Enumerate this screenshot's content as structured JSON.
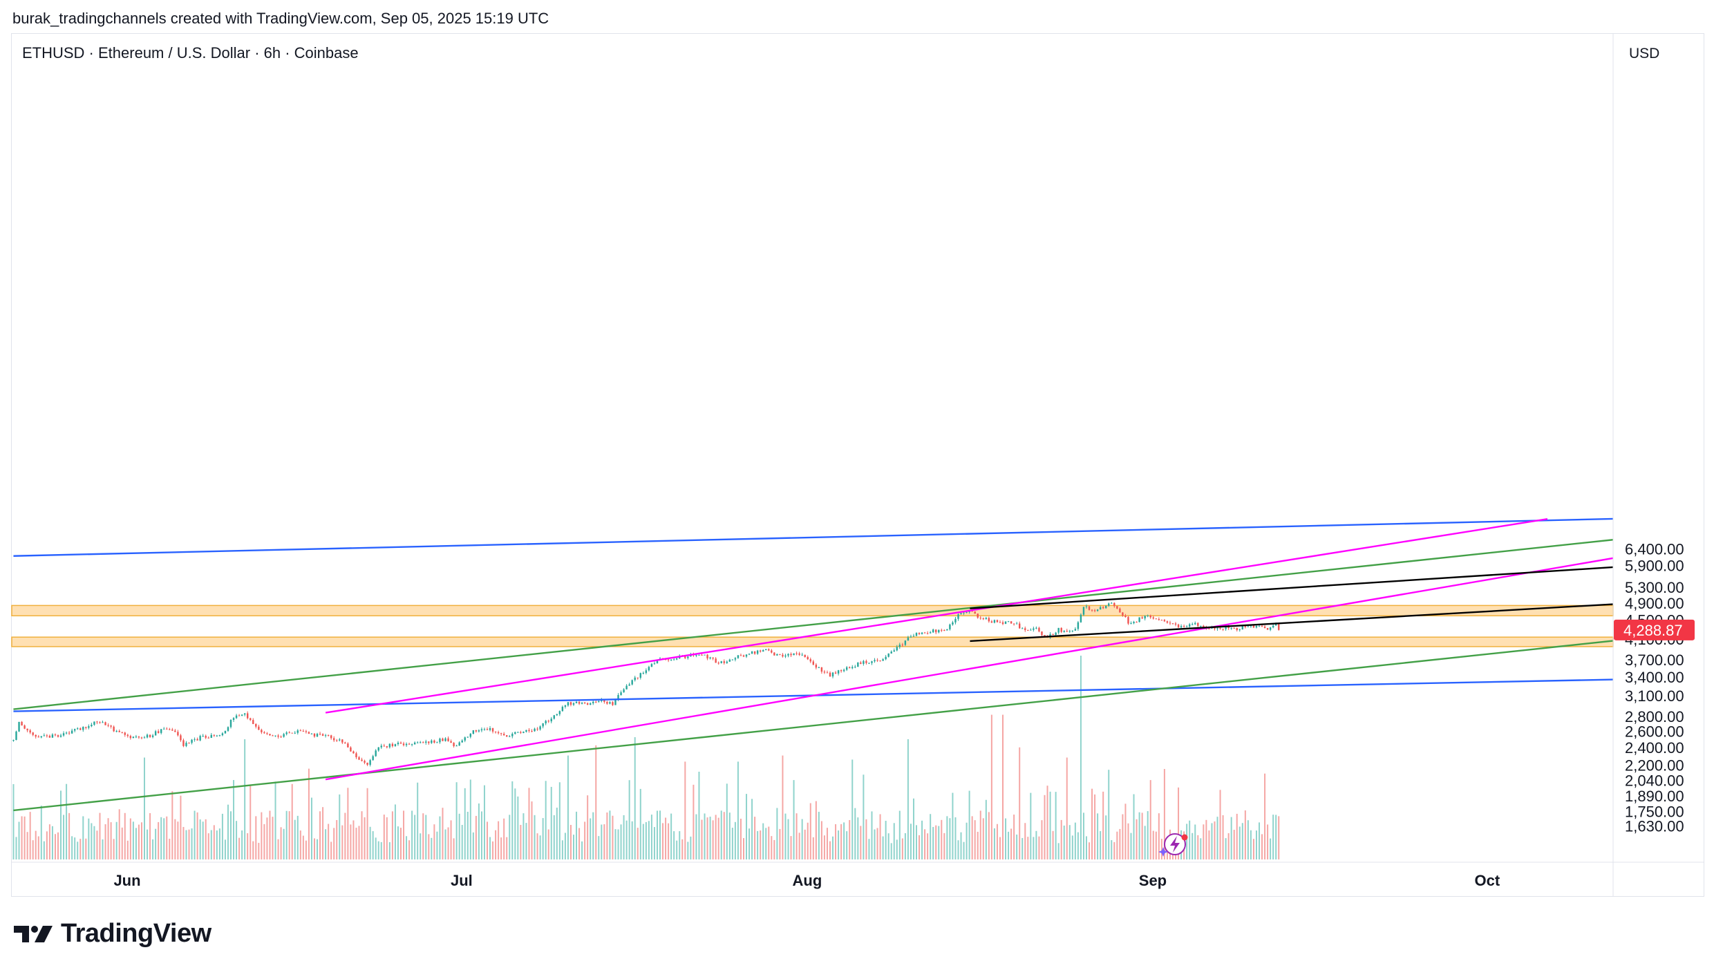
{
  "header": {
    "attribution": "burak_tradingchannels created with TradingView.com, Sep 05, 2025 15:19 UTC"
  },
  "symbol": {
    "title": "ETHUSD · Ethereum / U.S. Dollar · 6h · Coinbase",
    "currency": "USD",
    "last_price": "4,288.87"
  },
  "footer": {
    "logo_text": "TradingView"
  },
  "colors": {
    "up": "#26a69a",
    "down": "#ef5350",
    "blue_line": "#2962ff",
    "magenta_line": "#ff00ff",
    "green_line": "#43a047",
    "black_line": "#000000",
    "zone_fill": "#ffe0b2",
    "zone_border": "#f0b03c",
    "badge": "#f23645"
  },
  "chart_data": {
    "type": "candlestick",
    "title": "ETHUSD · Ethereum / U.S. Dollar · 6h · Coinbase",
    "y_scale": "log",
    "y_ticks": [
      {
        "value": 6400,
        "label": "6,400.00"
      },
      {
        "value": 5900,
        "label": "5,900.00"
      },
      {
        "value": 5300,
        "label": "5,300.00"
      },
      {
        "value": 4900,
        "label": "4,900.00"
      },
      {
        "value": 4500,
        "label": "4,500.00"
      },
      {
        "value": 4100,
        "label": "4,100.00"
      },
      {
        "value": 3700,
        "label": "3,700.00"
      },
      {
        "value": 3400,
        "label": "3,400.00"
      },
      {
        "value": 3100,
        "label": "3,100.00"
      },
      {
        "value": 2800,
        "label": "2,800.00"
      },
      {
        "value": 2600,
        "label": "2,600.00"
      },
      {
        "value": 2400,
        "label": "2,400.00"
      },
      {
        "value": 2200,
        "label": "2,200.00"
      },
      {
        "value": 2040,
        "label": "2,040.00"
      },
      {
        "value": 1890,
        "label": "1,890.00"
      },
      {
        "value": 1750,
        "label": "1,750.00"
      },
      {
        "value": 1630,
        "label": "1,630.00"
      }
    ],
    "x_ticks": [
      {
        "day": 0,
        "label": "Jun"
      },
      {
        "day": 30,
        "label": "Jul"
      },
      {
        "day": 61,
        "label": "Aug"
      },
      {
        "day": 92,
        "label": "Sep"
      },
      {
        "day": 122,
        "label": "Oct"
      }
    ],
    "price_anchors": [
      {
        "day": -10.2,
        "price": 2490
      },
      {
        "day": -9.7,
        "price": 2700
      },
      {
        "day": -8,
        "price": 2520
      },
      {
        "day": -5.5,
        "price": 2560
      },
      {
        "day": -3.5,
        "price": 2680
      },
      {
        "day": -2.5,
        "price": 2740
      },
      {
        "day": -1,
        "price": 2600
      },
      {
        "day": 0.5,
        "price": 2520
      },
      {
        "day": 2,
        "price": 2540
      },
      {
        "day": 3.5,
        "price": 2650
      },
      {
        "day": 4.5,
        "price": 2580
      },
      {
        "day": 5,
        "price": 2420
      },
      {
        "day": 6.5,
        "price": 2520
      },
      {
        "day": 8.5,
        "price": 2560
      },
      {
        "day": 9.5,
        "price": 2780
      },
      {
        "day": 10.5,
        "price": 2840
      },
      {
        "day": 12,
        "price": 2600
      },
      {
        "day": 13.5,
        "price": 2530
      },
      {
        "day": 15.5,
        "price": 2620
      },
      {
        "day": 16.5,
        "price": 2560
      },
      {
        "day": 18,
        "price": 2540
      },
      {
        "day": 19.5,
        "price": 2450
      },
      {
        "day": 20.5,
        "price": 2300
      },
      {
        "day": 21.5,
        "price": 2210
      },
      {
        "day": 22.5,
        "price": 2410
      },
      {
        "day": 24.5,
        "price": 2440
      },
      {
        "day": 26.5,
        "price": 2450
      },
      {
        "day": 28.5,
        "price": 2500
      },
      {
        "day": 29.5,
        "price": 2410
      },
      {
        "day": 31,
        "price": 2600
      },
      {
        "day": 32.5,
        "price": 2620
      },
      {
        "day": 34,
        "price": 2550
      },
      {
        "day": 36.5,
        "price": 2610
      },
      {
        "day": 38,
        "price": 2770
      },
      {
        "day": 39.5,
        "price": 2980
      },
      {
        "day": 41,
        "price": 2980
      },
      {
        "day": 42.5,
        "price": 3030
      },
      {
        "day": 43.5,
        "price": 2970
      },
      {
        "day": 45,
        "price": 3300
      },
      {
        "day": 46.5,
        "price": 3500
      },
      {
        "day": 47.5,
        "price": 3700
      },
      {
        "day": 50,
        "price": 3760
      },
      {
        "day": 51.5,
        "price": 3820
      },
      {
        "day": 53,
        "price": 3640
      },
      {
        "day": 55.5,
        "price": 3800
      },
      {
        "day": 57,
        "price": 3890
      },
      {
        "day": 58.5,
        "price": 3780
      },
      {
        "day": 60.5,
        "price": 3800
      },
      {
        "day": 61.8,
        "price": 3580
      },
      {
        "day": 63,
        "price": 3420
      },
      {
        "day": 64.5,
        "price": 3560
      },
      {
        "day": 66,
        "price": 3650
      },
      {
        "day": 67.5,
        "price": 3680
      },
      {
        "day": 69,
        "price": 3900
      },
      {
        "day": 70.5,
        "price": 4200
      },
      {
        "day": 72,
        "price": 4260
      },
      {
        "day": 73.5,
        "price": 4300
      },
      {
        "day": 74.5,
        "price": 4600
      },
      {
        "day": 75.5,
        "price": 4740
      },
      {
        "day": 76.5,
        "price": 4560
      },
      {
        "day": 78,
        "price": 4450
      },
      {
        "day": 79.5,
        "price": 4450
      },
      {
        "day": 80.5,
        "price": 4280
      },
      {
        "day": 81.5,
        "price": 4330
      },
      {
        "day": 82.5,
        "price": 4120
      },
      {
        "day": 83.5,
        "price": 4300
      },
      {
        "day": 84.5,
        "price": 4230
      },
      {
        "day": 85.2,
        "price": 4330
      },
      {
        "day": 85.7,
        "price": 4810
      },
      {
        "day": 86.5,
        "price": 4740
      },
      {
        "day": 87.5,
        "price": 4780
      },
      {
        "day": 88.2,
        "price": 4900
      },
      {
        "day": 89,
        "price": 4700
      },
      {
        "day": 90,
        "price": 4400
      },
      {
        "day": 91,
        "price": 4580
      },
      {
        "day": 92,
        "price": 4560
      },
      {
        "day": 93.5,
        "price": 4420
      },
      {
        "day": 94.5,
        "price": 4330
      },
      {
        "day": 95.5,
        "price": 4420
      },
      {
        "day": 96.5,
        "price": 4380
      },
      {
        "day": 97.5,
        "price": 4300
      },
      {
        "day": 98.5,
        "price": 4350
      },
      {
        "day": 99.5,
        "price": 4280
      },
      {
        "day": 100.5,
        "price": 4400
      },
      {
        "day": 101.5,
        "price": 4360
      },
      {
        "day": 102.5,
        "price": 4300
      },
      {
        "day": 103,
        "price": 4420
      },
      {
        "day": 103.3,
        "price": 4289
      }
    ],
    "volume_spikes": [
      {
        "day": 85.5,
        "rel": 1.0
      },
      {
        "day": 77.5,
        "rel": 0.71
      },
      {
        "day": 78.5,
        "rel": 0.71
      },
      {
        "day": 84.2,
        "rel": 0.5
      },
      {
        "day": 65,
        "rel": 0.49
      },
      {
        "day": 70,
        "rel": 0.59
      },
      {
        "day": 42,
        "rel": 0.56
      },
      {
        "day": 39.5,
        "rel": 0.51
      },
      {
        "day": 10.5,
        "rel": 0.59
      },
      {
        "day": 58.8,
        "rel": 0.51
      },
      {
        "day": 45.5,
        "rel": 0.6
      },
      {
        "day": 1.5,
        "rel": 0.5
      },
      {
        "day": 80,
        "rel": 0.55
      },
      {
        "day": 103.5,
        "rel": 0.42
      },
      {
        "day": 21.5,
        "rel": 0.35
      },
      {
        "day": 88,
        "rel": 0.44
      },
      {
        "day": 50,
        "rel": 0.48
      },
      {
        "day": 54.8,
        "rel": 0.48
      }
    ],
    "drawings": [
      {
        "name": "blue-upper",
        "color": "#2962ff",
        "p1": {
          "day": -10.2,
          "price": 6180
        },
        "p2": {
          "day": 133.9,
          "price": 7430
        }
      },
      {
        "name": "blue-lower",
        "color": "#2962ff",
        "p1": {
          "day": -10.2,
          "price": 2870
        },
        "p2": {
          "day": 133.9,
          "price": 3360
        }
      },
      {
        "name": "green-upper",
        "color": "#43a047",
        "p1": {
          "day": -10.2,
          "price": 2900
        },
        "p2": {
          "day": 133.9,
          "price": 6720
        }
      },
      {
        "name": "green-lower",
        "color": "#43a047",
        "p1": {
          "day": -10.2,
          "price": 1760
        },
        "p2": {
          "day": 133.9,
          "price": 4080
        }
      },
      {
        "name": "magenta-upper",
        "color": "#ff00ff",
        "p1": {
          "day": 17.8,
          "price": 2850
        },
        "p2": {
          "day": 127.4,
          "price": 7420
        }
      },
      {
        "name": "magenta-lower",
        "color": "#ff00ff",
        "p1": {
          "day": 17.8,
          "price": 2050
        },
        "p2": {
          "day": 133.9,
          "price": 6150
        }
      },
      {
        "name": "black-upper",
        "color": "#000000",
        "p1": {
          "day": 75.6,
          "price": 4770
        },
        "p2": {
          "day": 133.9,
          "price": 5860
        }
      },
      {
        "name": "black-lower",
        "color": "#000000",
        "p1": {
          "day": 75.6,
          "price": 4060
        },
        "p2": {
          "day": 133.9,
          "price": 4880
        }
      }
    ],
    "zones": [
      {
        "name": "resistance-zone",
        "top": 4840,
        "bottom": 4600
      },
      {
        "name": "support-zone",
        "top": 4140,
        "bottom": 3950
      }
    ],
    "grid": false,
    "legend": "none"
  }
}
